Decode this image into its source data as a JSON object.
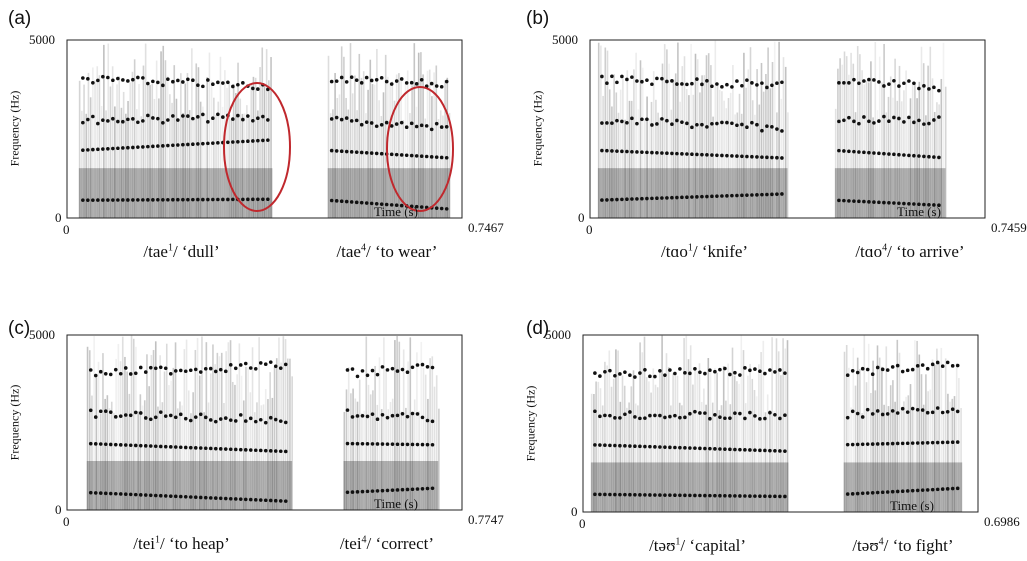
{
  "y_axis_label": "Frequency (Hz)",
  "x_axis_label": "Time (s)",
  "panels": [
    {
      "label": "(a)",
      "y_ticks": [
        "5000",
        "0"
      ],
      "x_ticks": [
        "0",
        "0.7467"
      ],
      "captions": [
        {
          "pre": "/tae",
          "sup": "1",
          "post": "/ ‘dull’"
        },
        {
          "pre": "/tae",
          "sup": "4",
          "post": "/ ‘to wear’"
        }
      ]
    },
    {
      "label": "(b)",
      "y_ticks": [
        "5000",
        "0"
      ],
      "x_ticks": [
        "0",
        "0.7459"
      ],
      "captions": [
        {
          "pre": "/tɑo",
          "sup": "1",
          "post": "/ ‘knife’"
        },
        {
          "pre": "/tɑo",
          "sup": "4",
          "post": "/ ‘to arrive’"
        }
      ]
    },
    {
      "label": "(c)",
      "y_ticks": [
        "5000",
        "0"
      ],
      "x_ticks": [
        "0",
        "0.7747"
      ],
      "captions": [
        {
          "pre": "/tei",
          "sup": "1",
          "post": "/ ‘to heap’"
        },
        {
          "pre": "/tei",
          "sup": "4",
          "post": "/ ‘correct’"
        }
      ]
    },
    {
      "label": "(d)",
      "y_ticks": [
        "5000",
        "0"
      ],
      "x_ticks": [
        "0",
        "0.6986"
      ],
      "captions": [
        {
          "pre": "/təʊ",
          "sup": "1",
          "post": "/ ‘capital’"
        },
        {
          "pre": "/təʊ",
          "sup": "4",
          "post": "/ ‘to fight’"
        }
      ]
    }
  ]
}
